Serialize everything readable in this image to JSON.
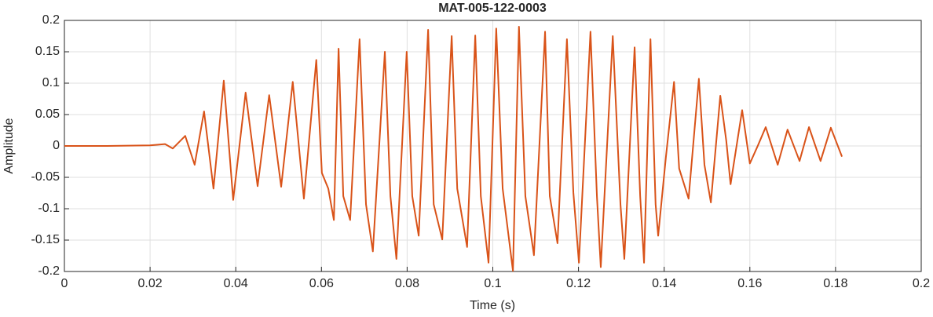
{
  "chart_data": {
    "type": "line",
    "title": "MAT-005-122-0003",
    "x_label": "Time (s)",
    "y_label": "Amplitude",
    "xlim": [
      0,
      0.2
    ],
    "xticks": [
      0,
      0.02,
      0.04,
      0.06,
      0.08,
      0.1,
      0.12,
      0.14,
      0.16,
      0.18,
      0.2
    ],
    "ylim": [
      -0.2,
      0.2
    ],
    "yticks": [
      -0.2,
      -0.15,
      -0.1,
      -0.05,
      0,
      0.05,
      0.1,
      0.15,
      0.2
    ],
    "grid": true,
    "series": [
      {
        "color": "#d95319",
        "x": [
          0,
          0.01,
          0.02,
          0.0235,
          0.0253,
          0.0282,
          0.0304,
          0.0326,
          0.0348,
          0.0372,
          0.0394,
          0.0423,
          0.0451,
          0.0478,
          0.0506,
          0.0533,
          0.0559,
          0.0588,
          0.0601,
          0.0616,
          0.0629,
          0.064,
          0.0651,
          0.0667,
          0.0689,
          0.0704,
          0.072,
          0.0748,
          0.0761,
          0.0775,
          0.0799,
          0.0812,
          0.0827,
          0.0849,
          0.0862,
          0.0882,
          0.0904,
          0.0917,
          0.094,
          0.0959,
          0.0972,
          0.099,
          0.1008,
          0.1023,
          0.1047,
          0.1061,
          0.1076,
          0.1096,
          0.1122,
          0.1133,
          0.1151,
          0.1173,
          0.1188,
          0.1201,
          0.1228,
          0.1243,
          0.1252,
          0.128,
          0.1298,
          0.1307,
          0.1331,
          0.1344,
          0.1353,
          0.1368,
          0.138,
          0.1386,
          0.1404,
          0.1423,
          0.1435,
          0.1457,
          0.1481,
          0.1494,
          0.1509,
          0.1531,
          0.1545,
          0.1555,
          0.1582,
          0.16,
          0.1619,
          0.1637,
          0.1665,
          0.1688,
          0.1716,
          0.1738,
          0.1765,
          0.1789,
          0.1815
        ],
        "values": [
          0,
          0,
          0.001,
          0.003,
          -0.004,
          0.016,
          -0.03,
          0.055,
          -0.068,
          0.104,
          -0.086,
          0.085,
          -0.064,
          0.081,
          -0.065,
          0.102,
          -0.084,
          0.137,
          -0.043,
          -0.068,
          -0.118,
          0.155,
          -0.08,
          -0.118,
          0.17,
          -0.093,
          -0.168,
          0.15,
          -0.08,
          -0.18,
          0.15,
          -0.08,
          -0.143,
          0.185,
          -0.093,
          -0.149,
          0.175,
          -0.068,
          -0.161,
          0.176,
          -0.08,
          -0.186,
          0.187,
          -0.068,
          -0.199,
          0.19,
          -0.08,
          -0.174,
          0.182,
          -0.08,
          -0.155,
          0.17,
          -0.074,
          -0.186,
          0.182,
          -0.08,
          -0.193,
          0.175,
          -0.093,
          -0.18,
          0.157,
          -0.08,
          -0.186,
          0.17,
          -0.093,
          -0.143,
          -0.018,
          0.102,
          -0.036,
          -0.084,
          0.107,
          -0.03,
          -0.09,
          0.08,
          0.008,
          -0.061,
          0.057,
          -0.028,
          0.001,
          0.03,
          -0.03,
          0.026,
          -0.024,
          0.03,
          -0.024,
          0.029,
          -0.017
        ]
      }
    ]
  }
}
